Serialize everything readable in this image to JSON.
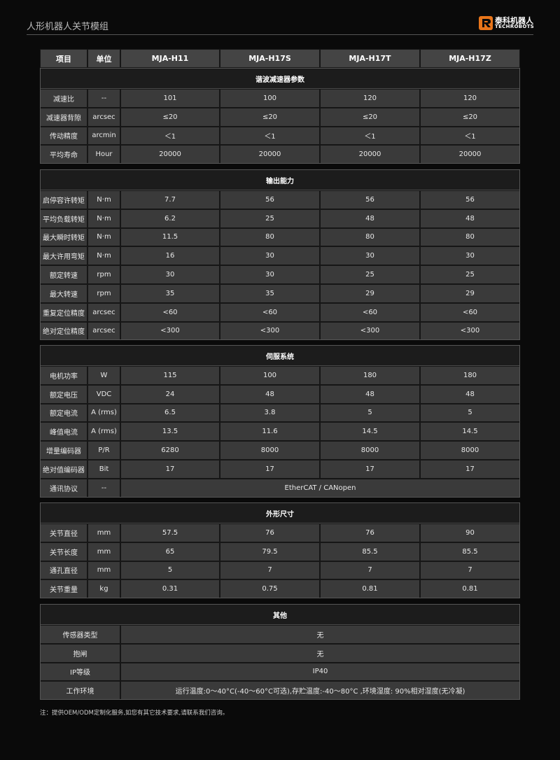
{
  "header": {
    "title": "人形机器人关节模组",
    "logo_cn": "泰科机器人",
    "logo_en": "TECHROBOTS"
  },
  "table": {
    "columns": [
      "项目",
      "单位",
      "MJA-H11",
      "MJA-H17S",
      "MJA-H17T",
      "MJA-H17Z"
    ],
    "sections": [
      {
        "title": "谐波减速器参数",
        "rows": [
          [
            "减速比",
            "--",
            "101",
            "100",
            "120",
            "120"
          ],
          [
            "减速器背隙",
            "arcsec",
            "≤20",
            "≤20",
            "≤20",
            "≤20"
          ],
          [
            "传动精度",
            "arcmin",
            "＜1",
            "＜1",
            "＜1",
            "＜1"
          ],
          [
            "平均寿命",
            "Hour",
            "20000",
            "20000",
            "20000",
            "20000"
          ]
        ]
      },
      {
        "title": "输出能力",
        "rows": [
          [
            "启停容许转矩",
            "N·m",
            "7.7",
            "56",
            "56",
            "56"
          ],
          [
            "平均负载转矩",
            "N·m",
            "6.2",
            "25",
            "48",
            "48"
          ],
          [
            "最大瞬时转矩",
            "N·m",
            "11.5",
            "80",
            "80",
            "80"
          ],
          [
            "最大许用弯矩",
            "N·m",
            "16",
            "30",
            "30",
            "30"
          ],
          [
            "额定转速",
            "rpm",
            "30",
            "30",
            "25",
            "25"
          ],
          [
            "最大转速",
            "rpm",
            "35",
            "35",
            "29",
            "29"
          ],
          [
            "重复定位精度",
            "arcsec",
            "<60",
            "<60",
            "<60",
            "<60"
          ],
          [
            "绝对定位精度",
            "arcsec",
            "<300",
            "<300",
            "<300",
            "<300"
          ]
        ]
      },
      {
        "title": "伺服系统",
        "rows": [
          [
            "电机功率",
            "W",
            "115",
            "100",
            "180",
            "180"
          ],
          [
            "额定电压",
            "VDC",
            "24",
            "48",
            "48",
            "48"
          ],
          [
            "额定电流",
            "A (rms)",
            "6.5",
            "3.8",
            "5",
            "5"
          ],
          [
            "峰值电流",
            "A (rms)",
            "13.5",
            "11.6",
            "14.5",
            "14.5"
          ],
          [
            "增量编码器",
            "P/R",
            "6280",
            "8000",
            "8000",
            "8000"
          ],
          [
            "绝对值编码器",
            "Bit",
            "17",
            "17",
            "17",
            "17"
          ],
          [
            "通讯协议",
            "--",
            "EtherCAT / CANopen"
          ]
        ]
      },
      {
        "title": "外形尺寸",
        "rows": [
          [
            "关节直径",
            "mm",
            "57.5",
            "76",
            "76",
            "90"
          ],
          [
            "关节长度",
            "mm",
            "65",
            "79.5",
            "85.5",
            "85.5"
          ],
          [
            "通孔直径",
            "mm",
            "5",
            "7",
            "7",
            "7"
          ],
          [
            "关节重量",
            "kg",
            "0.31",
            "0.75",
            "0.81",
            "0.81"
          ]
        ]
      },
      {
        "title": "其他",
        "rows": [
          [
            "传感器类型",
            "无"
          ],
          [
            "抱闸",
            "无"
          ],
          [
            "IP等级",
            "IP40"
          ],
          [
            "工作环境",
            "运行温度:0～40°C(-40～60°C可选),存贮温度:-40～80°C ,环境湿度: 90%相对湿度(无冷凝)"
          ]
        ]
      }
    ]
  },
  "note": "注：提供OEM/ODM定制化服务,如您有其它技术要求,请联系我们咨询。"
}
